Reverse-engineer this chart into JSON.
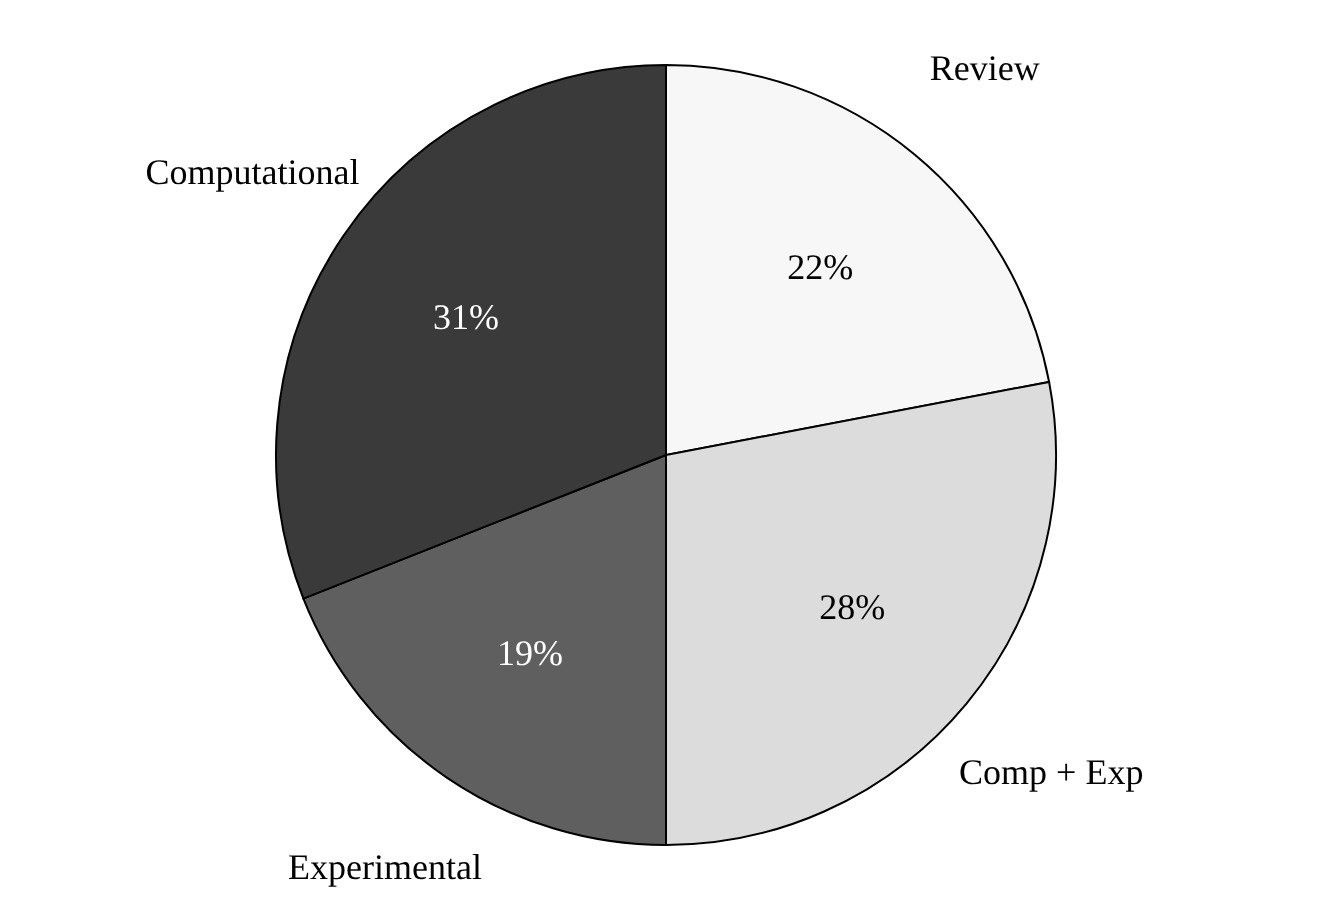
{
  "chart_data": {
    "type": "pie",
    "categories": [
      "Review",
      "Comp + Exp",
      "Experimental",
      "Computational"
    ],
    "values": [
      22,
      28,
      19,
      31
    ],
    "colors": [
      "#f7f7f7",
      "#dcdcdc",
      "#5f5f5f",
      "#3a3a3a"
    ],
    "value_labels": [
      "22%",
      "28%",
      "19%",
      "31%"
    ]
  }
}
